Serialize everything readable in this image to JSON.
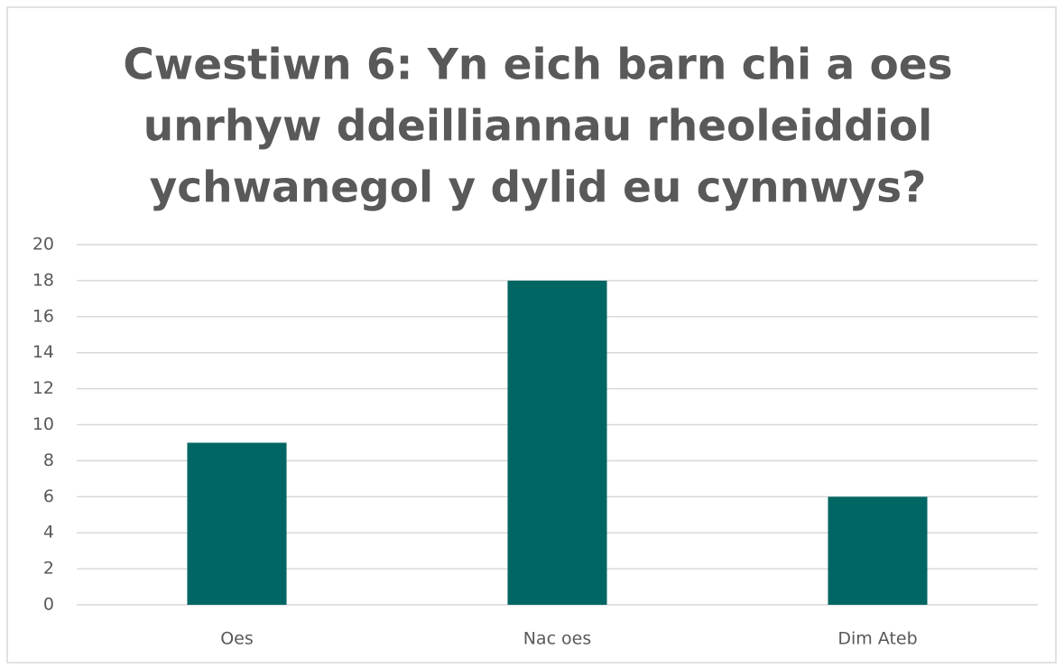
{
  "chart_data": {
    "type": "bar",
    "title": [
      "Cwestiwn 6: Yn eich barn chi a oes",
      "unrhyw ddeilliannau rheoleiddiol",
      "ychwanegol y dylid eu cynnwys?"
    ],
    "categories": [
      "Oes",
      "Nac oes",
      "Dim Ateb"
    ],
    "values": [
      9,
      18,
      6
    ],
    "color": "#006663",
    "ylim": [
      0,
      20
    ],
    "yticks": [
      0,
      2,
      4,
      6,
      8,
      10,
      12,
      14,
      16,
      18,
      20
    ],
    "grid": true
  }
}
